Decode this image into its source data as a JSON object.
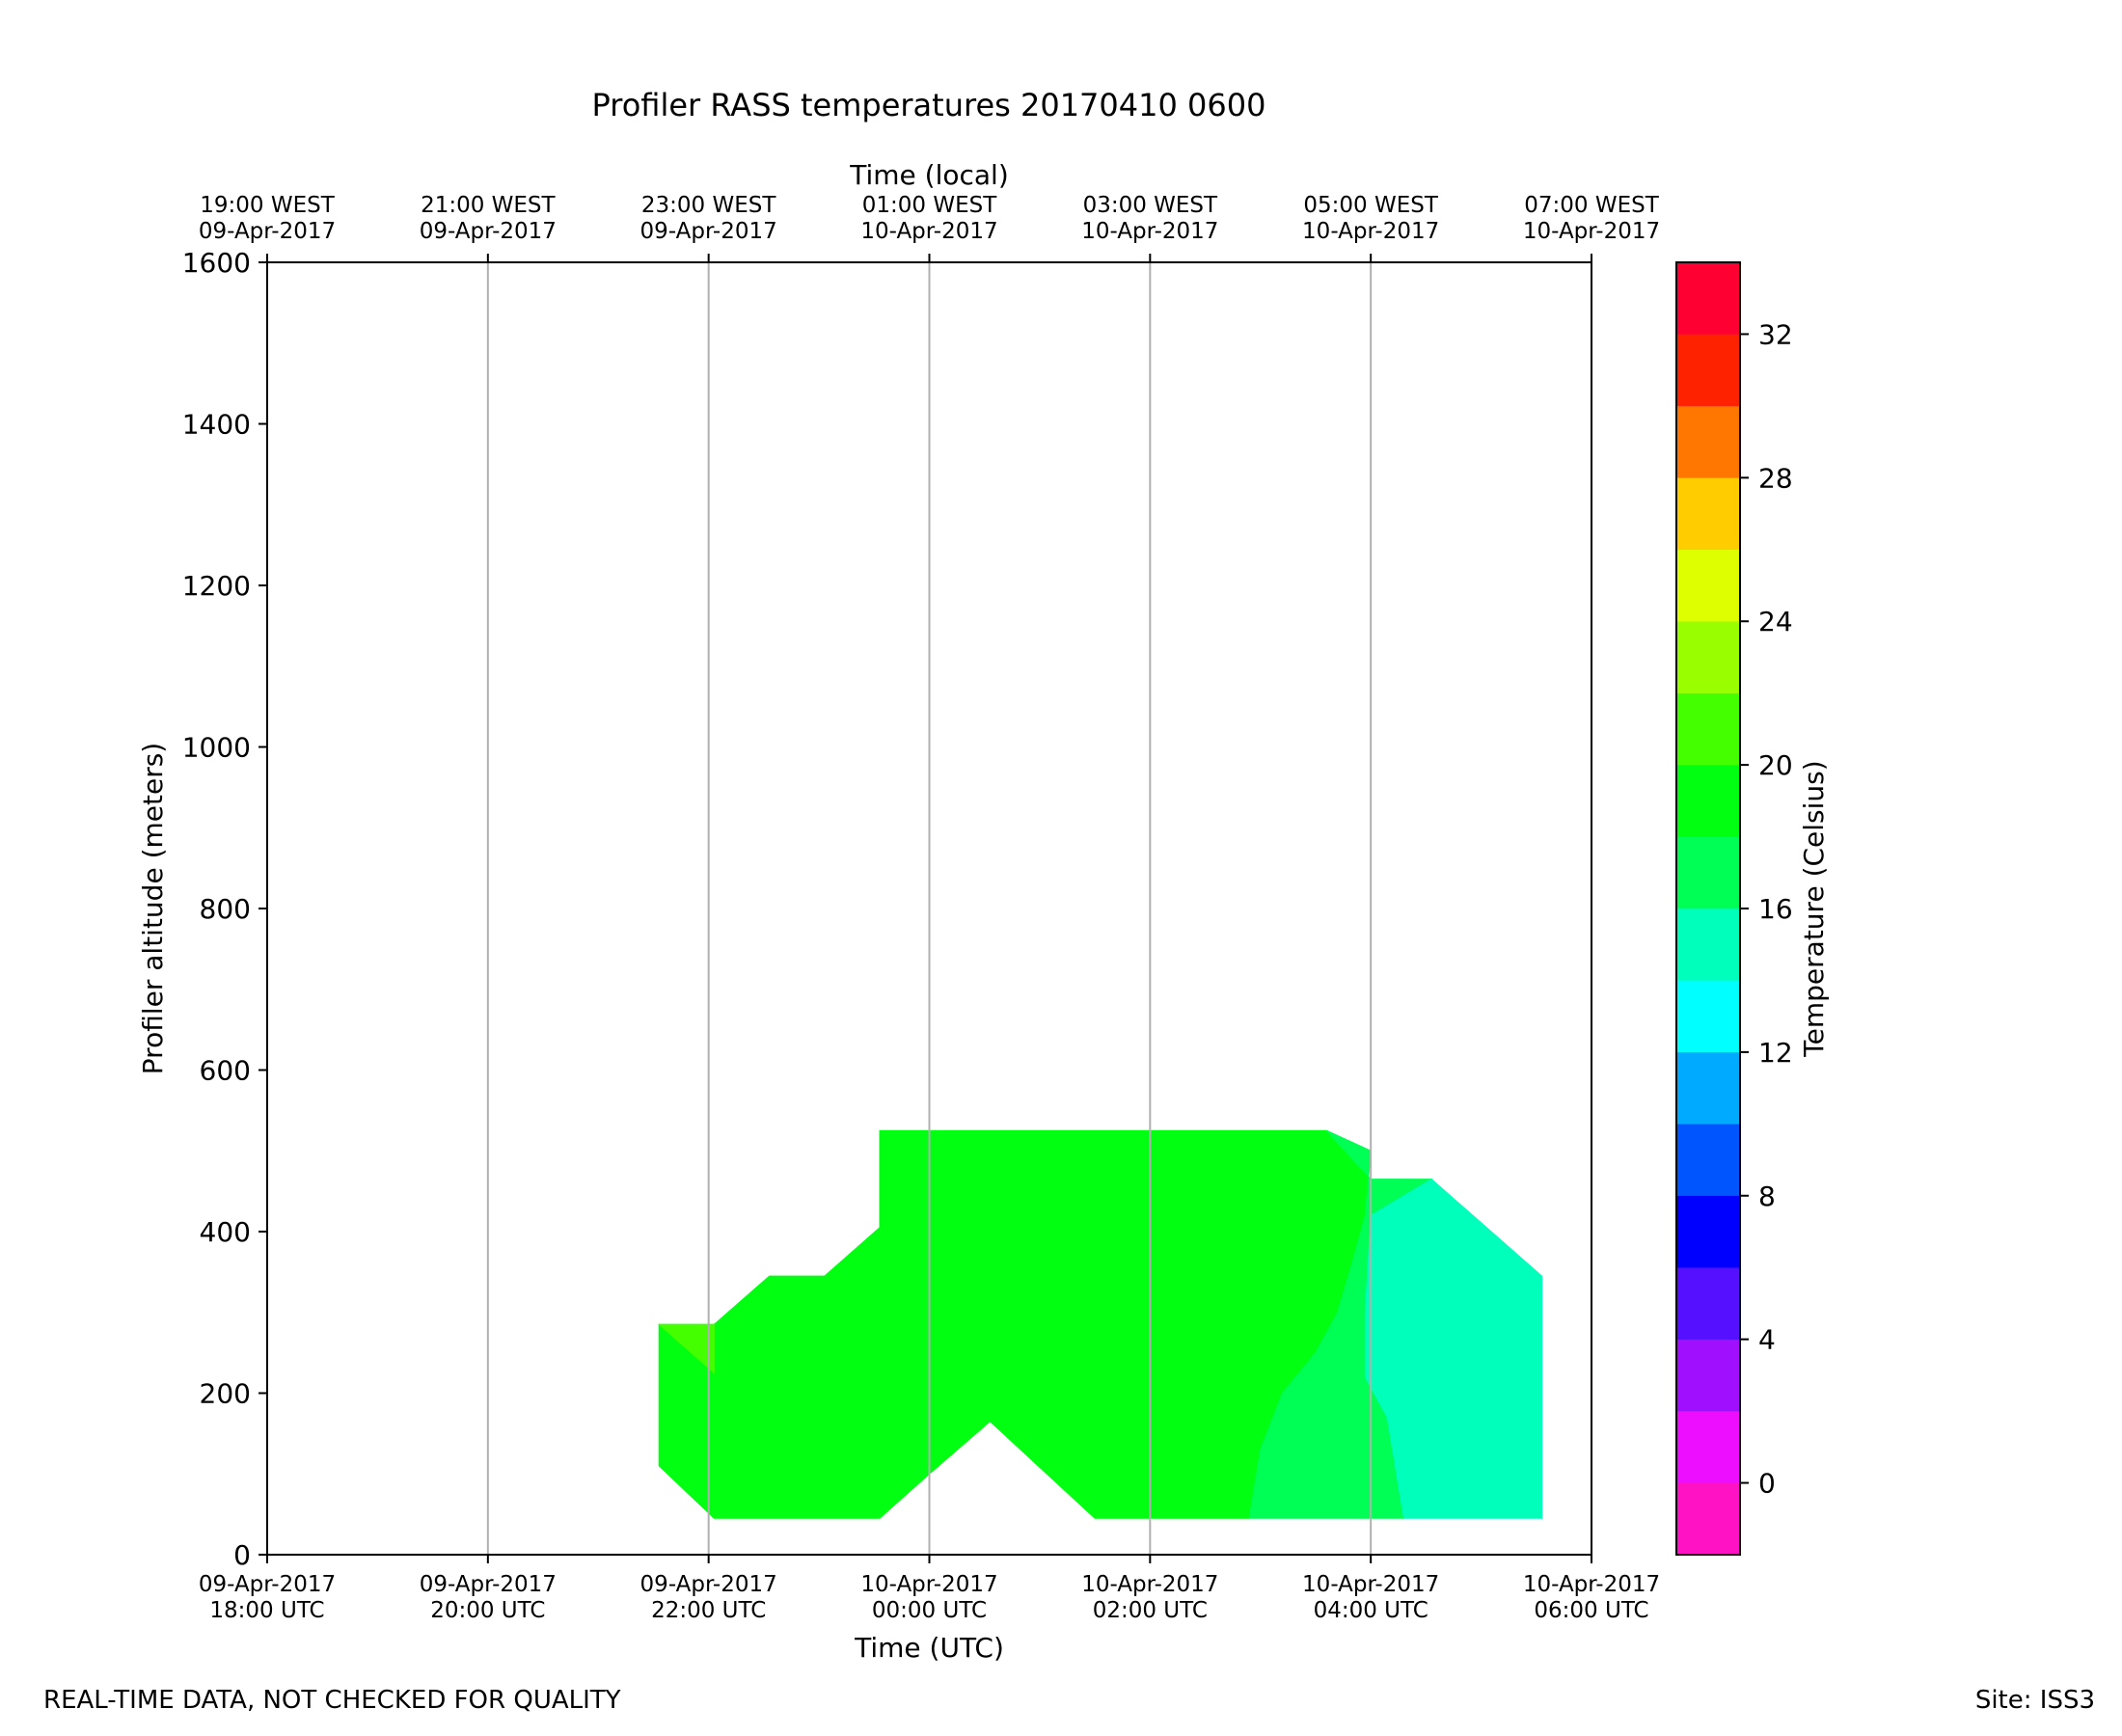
{
  "chart_data": {
    "type": "heatmap",
    "subtype": "filled-contour",
    "title": "Profiler RASS temperatures 20170410 0600",
    "xlabel": "Time (UTC)",
    "x2label": "Time (local)",
    "ylabel": "Profiler altitude (meters)",
    "colorbar_label": "Temperature (Celsius)",
    "xlim": [
      "2017-04-09 18:00 UTC",
      "2017-04-10 06:00 UTC"
    ],
    "ylim": [
      0,
      1600
    ],
    "y_ticks": [
      0,
      200,
      400,
      600,
      800,
      1000,
      1200,
      1400,
      1600
    ],
    "x_ticks": [
      {
        "hour": 0,
        "line1": "09-Apr-2017",
        "line2": "18:00 UTC"
      },
      {
        "hour": 2,
        "line1": "09-Apr-2017",
        "line2": "20:00 UTC"
      },
      {
        "hour": 4,
        "line1": "09-Apr-2017",
        "line2": "22:00 UTC"
      },
      {
        "hour": 6,
        "line1": "10-Apr-2017",
        "line2": "00:00 UTC"
      },
      {
        "hour": 8,
        "line1": "10-Apr-2017",
        "line2": "02:00 UTC"
      },
      {
        "hour": 10,
        "line1": "10-Apr-2017",
        "line2": "04:00 UTC"
      },
      {
        "hour": 12,
        "line1": "10-Apr-2017",
        "line2": "06:00 UTC"
      }
    ],
    "x2_ticks": [
      {
        "hour": 0,
        "line1": "19:00 WEST",
        "line2": "09-Apr-2017"
      },
      {
        "hour": 2,
        "line1": "21:00 WEST",
        "line2": "09-Apr-2017"
      },
      {
        "hour": 4,
        "line1": "23:00 WEST",
        "line2": "09-Apr-2017"
      },
      {
        "hour": 6,
        "line1": "01:00 WEST",
        "line2": "10-Apr-2017"
      },
      {
        "hour": 8,
        "line1": "03:00 WEST",
        "line2": "10-Apr-2017"
      },
      {
        "hour": 10,
        "line1": "05:00 WEST",
        "line2": "10-Apr-2017"
      },
      {
        "hour": 12,
        "line1": "07:00 WEST",
        "line2": "10-Apr-2017"
      }
    ],
    "vertical_grid": true,
    "colorbar": {
      "range": [
        -2,
        34
      ],
      "ticks": [
        0,
        4,
        8,
        12,
        16,
        20,
        24,
        28,
        32
      ],
      "levels": [
        {
          "lo": -2,
          "hi": 0,
          "color": "#ff11c4"
        },
        {
          "lo": 0,
          "hi": 2,
          "color": "#ee0eff"
        },
        {
          "lo": 2,
          "hi": 4,
          "color": "#a010ff"
        },
        {
          "lo": 4,
          "hi": 6,
          "color": "#5511ff"
        },
        {
          "lo": 6,
          "hi": 8,
          "color": "#0000ff"
        },
        {
          "lo": 8,
          "hi": 10,
          "color": "#0055ff"
        },
        {
          "lo": 10,
          "hi": 12,
          "color": "#00aaff"
        },
        {
          "lo": 12,
          "hi": 14,
          "color": "#00ffff"
        },
        {
          "lo": 14,
          "hi": 16,
          "color": "#00ffbb"
        },
        {
          "lo": 16,
          "hi": 18,
          "color": "#00ff55"
        },
        {
          "lo": 18,
          "hi": 20,
          "color": "#00ff11"
        },
        {
          "lo": 20,
          "hi": 22,
          "color": "#44ff00"
        },
        {
          "lo": 22,
          "hi": 24,
          "color": "#99ff00"
        },
        {
          "lo": 24,
          "hi": 26,
          "color": "#ddff00"
        },
        {
          "lo": 26,
          "hi": 28,
          "color": "#ffcc00"
        },
        {
          "lo": 28,
          "hi": 30,
          "color": "#ff7700"
        },
        {
          "lo": 30,
          "hi": 32,
          "color": "#ff2200"
        },
        {
          "lo": 32,
          "hi": 34,
          "color": "#ff0033"
        }
      ]
    },
    "regions": [
      {
        "level": "18-20",
        "color": "#00ff11",
        "points": [
          [
            3.55,
            110
          ],
          [
            3.55,
            285
          ],
          [
            4.05,
            285
          ],
          [
            4.55,
            345
          ],
          [
            5.05,
            345
          ],
          [
            5.55,
            405
          ],
          [
            5.55,
            525
          ],
          [
            9.6,
            525
          ],
          [
            10.0,
            500
          ],
          [
            9.95,
            420
          ],
          [
            9.85,
            370
          ],
          [
            9.7,
            300
          ],
          [
            9.5,
            250
          ],
          [
            9.2,
            200
          ],
          [
            9.0,
            130
          ],
          [
            8.9,
            45
          ],
          [
            7.5,
            45
          ],
          [
            6.55,
            165
          ],
          [
            6.0,
            100
          ],
          [
            5.55,
            45
          ],
          [
            4.05,
            45
          ]
        ]
      },
      {
        "level": "20-22",
        "color": "#44ff00",
        "points": [
          [
            3.55,
            285
          ],
          [
            4.05,
            285
          ],
          [
            4.05,
            225
          ]
        ]
      },
      {
        "level": "16-18",
        "color": "#00ff55",
        "points": [
          [
            9.6,
            525
          ],
          [
            10.0,
            465
          ],
          [
            10.55,
            465
          ],
          [
            10.0,
            420
          ],
          [
            9.95,
            300
          ],
          [
            9.95,
            220
          ],
          [
            10.15,
            170
          ],
          [
            10.3,
            45
          ],
          [
            8.9,
            45
          ],
          [
            9.0,
            130
          ],
          [
            9.2,
            200
          ],
          [
            9.5,
            250
          ],
          [
            9.7,
            300
          ],
          [
            9.85,
            370
          ],
          [
            9.95,
            420
          ],
          [
            10.0,
            500
          ]
        ]
      },
      {
        "level": "14-16",
        "color": "#00ffbb",
        "points": [
          [
            10.55,
            465
          ],
          [
            11.55,
            345
          ],
          [
            11.55,
            45
          ],
          [
            10.3,
            45
          ],
          [
            10.15,
            170
          ],
          [
            9.95,
            220
          ],
          [
            9.95,
            300
          ],
          [
            10.0,
            420
          ]
        ]
      }
    ]
  },
  "footer": {
    "left": "REAL-TIME DATA, NOT CHECKED FOR QUALITY",
    "right": "Site: ISS3"
  }
}
